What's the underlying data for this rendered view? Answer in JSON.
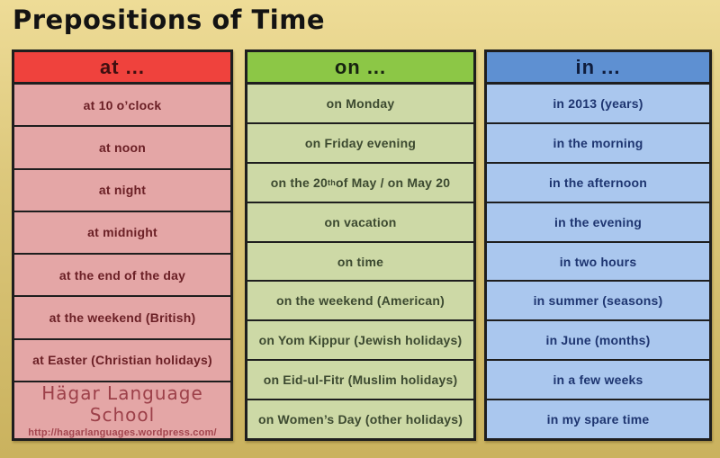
{
  "title": "Prepositions of Time",
  "colors": {
    "background_top": "#eedc97",
    "background_bottom": "#cab25e",
    "border": "#1e1e1e",
    "at_header_bg": "#ef423d",
    "at_body_bg": "#e4a6a6",
    "at_text": "#6b2026",
    "on_header_bg": "#8cc746",
    "on_body_bg": "#cdd9a6",
    "on_text": "#3c4930",
    "in_header_bg": "#5e90d2",
    "in_body_bg": "#aac7ee",
    "in_text": "#1e3570"
  },
  "columns": {
    "at": {
      "header": "at ...",
      "rows": [
        "at  10 o’clock",
        "at noon",
        "at night",
        "at midnight",
        "at the end of the day",
        "at the weekend (British)",
        "at Easter (Christian holidays)"
      ],
      "footer": {
        "school_name": "Hägar Language School",
        "school_url": "http://hagarlanguages.wordpress.com/"
      }
    },
    "on": {
      "header": "on ...",
      "rows": [
        "on Monday",
        "on Friday evening",
        {
          "pre": "on the 20",
          "sup": "th",
          "post": " of May / on May 20"
        },
        "on vacation",
        "on time",
        "on the weekend (American)",
        "on Yom Kippur (Jewish holidays)",
        "on Eid-ul-Fitr (Muslim holidays)",
        "on Women’s Day (other holidays)"
      ]
    },
    "in": {
      "header": "in ...",
      "rows": [
        "in 2013 (years)",
        "in the morning",
        "in the afternoon",
        "in the evening",
        "in two hours",
        "in summer (seasons)",
        "in June (months)",
        "in a few weeks",
        "in my spare time"
      ]
    }
  }
}
